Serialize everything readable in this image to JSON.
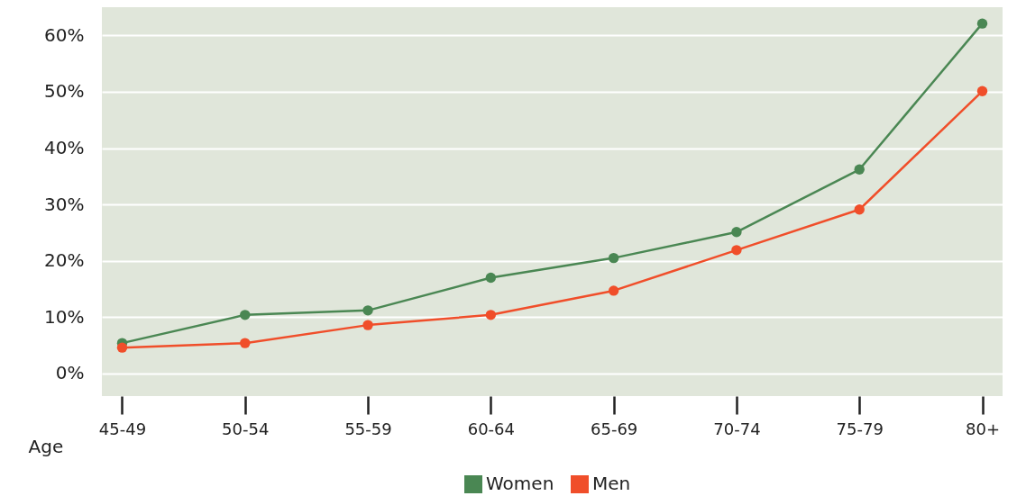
{
  "chart_data": {
    "type": "line",
    "xlabel": "Age",
    "categories": [
      "45-49",
      "50-54",
      "55-59",
      "60-64",
      "65-69",
      "70-74",
      "75-79",
      "80+"
    ],
    "series": [
      {
        "name": "Women",
        "color": "#4a8753",
        "values": [
          5.4,
          10.4,
          11.2,
          17.0,
          20.5,
          25.1,
          36.2,
          62.1
        ]
      },
      {
        "name": "Men",
        "color": "#f04e2a",
        "values": [
          4.6,
          5.4,
          8.6,
          10.4,
          14.7,
          21.9,
          29.1,
          50.1
        ]
      }
    ],
    "ylim": [
      -4,
      65
    ],
    "yticks": [
      {
        "value": 0,
        "label": "0%"
      },
      {
        "value": 10,
        "label": "10%"
      },
      {
        "value": 20,
        "label": "20%"
      },
      {
        "value": 30,
        "label": "30%"
      },
      {
        "value": 40,
        "label": "40%"
      },
      {
        "value": 50,
        "label": "50%"
      },
      {
        "value": 60,
        "label": "60%"
      }
    ],
    "grid": "y",
    "legend": "bottom",
    "marker": "circle",
    "line_style": "solid"
  }
}
